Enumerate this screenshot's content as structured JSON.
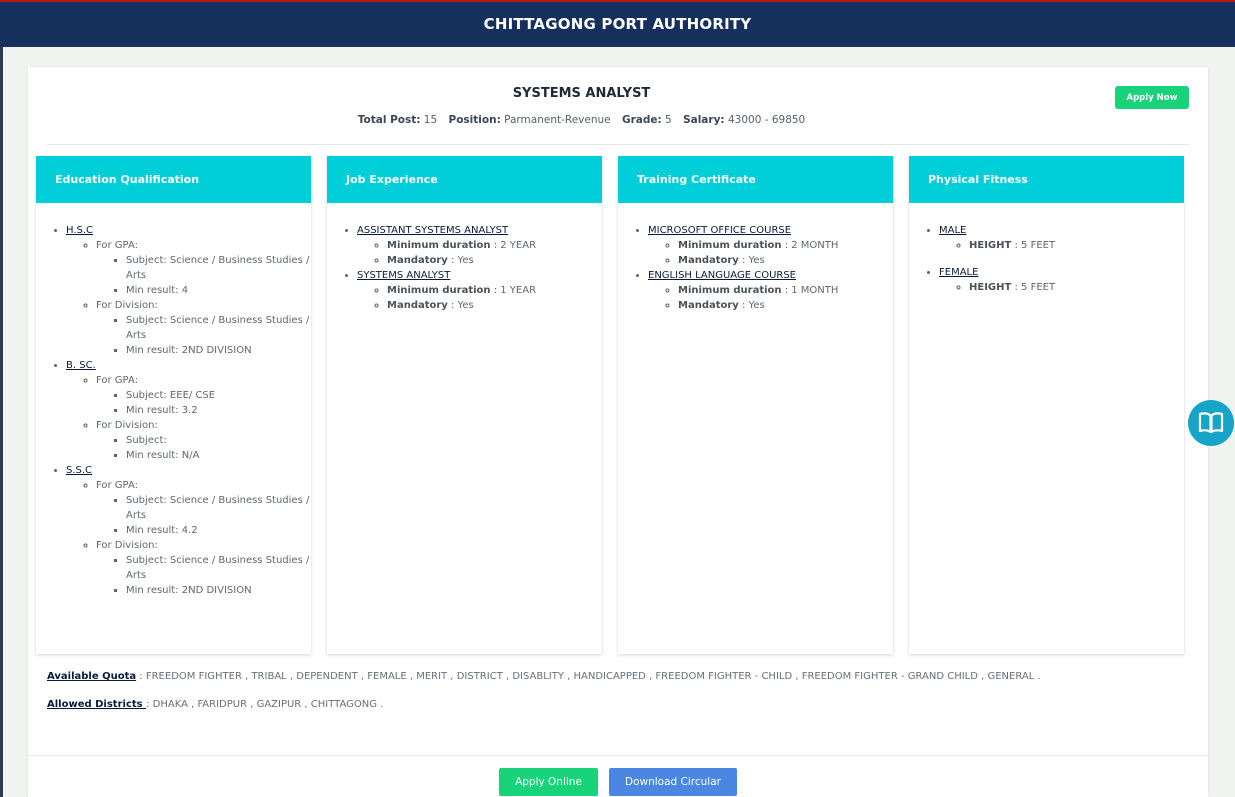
{
  "header": {
    "title": "CHITTAGONG PORT AUTHORITY"
  },
  "job": {
    "title": "SYSTEMS ANALYST",
    "apply_now": "Apply Now",
    "total_post_label": "Total Post:",
    "total_post": "15",
    "position_label": "Position:",
    "position": "Parmanent-Revenue",
    "grade_label": "Grade:",
    "grade": "5",
    "salary_label": "Salary:",
    "salary": "43000 - 69850"
  },
  "education": {
    "heading": "Education Qualification",
    "items": [
      {
        "name": "H.S.C",
        "gpa_label": "For GPA:",
        "gpa_subject": "Subject: Science / Business Studies / Arts",
        "gpa_min": "Min result: 4",
        "div_label": "For Division:",
        "div_subject": "Subject: Science / Business Studies / Arts",
        "div_min": "Min result: 2ND DIVISION"
      },
      {
        "name": "B. SC.",
        "gpa_label": "For GPA:",
        "gpa_subject": "Subject: EEE/ CSE",
        "gpa_min": "Min result: 3.2",
        "div_label": "For Division:",
        "div_subject": "Subject:",
        "div_min": "Min result: N/A"
      },
      {
        "name": "S.S.C",
        "gpa_label": "For GPA:",
        "gpa_subject": "Subject: Science / Business Studies / Arts",
        "gpa_min": "Min result: 4.2",
        "div_label": "For Division:",
        "div_subject": "Subject: Science / Business Studies / Arts",
        "div_min": "Min result: 2ND DIVISION"
      }
    ]
  },
  "experience": {
    "heading": "Job Experience",
    "items": [
      {
        "name": "ASSISTANT SYSTEMS ANALYST",
        "min_label": "Minimum duration",
        "min_value": " : 2 YEAR",
        "mand_label": "Mandatory",
        "mand_value": " : Yes"
      },
      {
        "name": "SYSTEMS ANALYST",
        "min_label": "Minimum duration",
        "min_value": " : 1 YEAR",
        "mand_label": "Mandatory",
        "mand_value": " : Yes"
      }
    ]
  },
  "training": {
    "heading": "Training Certificate",
    "items": [
      {
        "name": "MICROSOFT OFFICE COURSE",
        "min_label": "Minimum duration",
        "min_value": " : 2 MONTH",
        "mand_label": "Mandatory",
        "mand_value": " : Yes"
      },
      {
        "name": "ENGLISH LANGUAGE COURSE",
        "min_label": "Minimum duration",
        "min_value": " : 1 MONTH",
        "mand_label": "Mandatory",
        "mand_value": " : Yes"
      }
    ]
  },
  "fitness": {
    "heading": "Physical Fitness",
    "items": [
      {
        "name": "MALE",
        "label": "HEIGHT",
        "value": " : 5 FEET"
      },
      {
        "name": "FEMALE",
        "label": "HEIGHT",
        "value": " : 5 FEET"
      }
    ]
  },
  "quota": {
    "label": "Available Quota",
    "value": " : FREEDOM FIGHTER , TRIBAL , DEPENDENT , FEMALE , MERIT , DISTRICT , DISABLITY , HANDICAPPED , FREEDOM FIGHTER - CHILD , FREEDOM FIGHTER - GRAND CHILD , GENERAL ."
  },
  "districts": {
    "label": "Allowed Districts ",
    "value": " : DHAKA , FARIDPUR , GAZIPUR , CHITTAGONG ."
  },
  "footer": {
    "apply_online": "Apply Online",
    "download_circular": "Download Circular"
  },
  "icons": {
    "reader": "book-open-icon"
  },
  "colors": {
    "header": "#16305e",
    "accent": "#00cfda",
    "green": "#18d37a",
    "blue": "#4a86e2"
  }
}
